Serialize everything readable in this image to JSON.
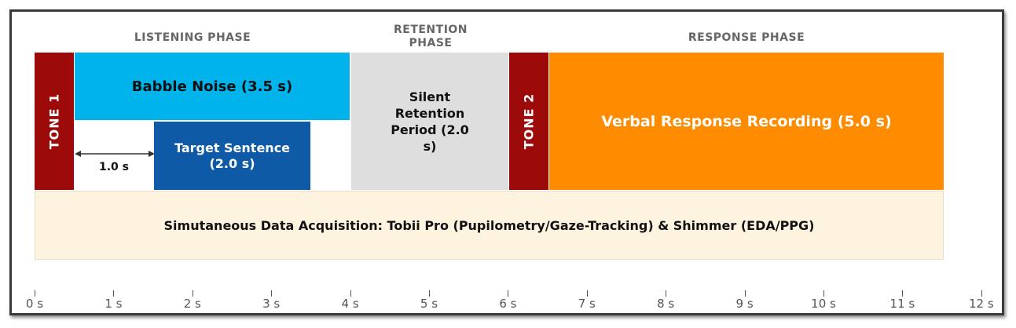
{
  "phases": {
    "listening": "LISTENING PHASE",
    "retention": "RETENTION PHASE",
    "response": "RESPONSE PHASE"
  },
  "blocks": {
    "tone1": "TONE 1",
    "babble": "Babble Noise (3.5 s)",
    "target": "Target Sentence (2.0 s)",
    "silent": "Silent Retention Period (2.0 s)",
    "tone2": "TONE 2",
    "verbal": "Verbal Response Recording (5.0 s)",
    "acquisition": "Simutaneous Data Acquisition: Tobii Pro (Pupilometry/Gaze-Tracking) & Shimmer (EDA/PPG)"
  },
  "offset_label": "1.0 s",
  "axis": {
    "ticks": [
      "0 s",
      "1 s",
      "2 s",
      "3 s",
      "4 s",
      "5 s",
      "6 s",
      "7 s",
      "8 s",
      "9 s",
      "10 s",
      "11 s",
      "12 s"
    ]
  },
  "colors": {
    "tone": "#9c0a0a",
    "babble": "#00b3eb",
    "target": "#0e5aa7",
    "silent": "#dedede",
    "verbal": "#ff8c00",
    "acquisition": "#fdf3df"
  }
}
